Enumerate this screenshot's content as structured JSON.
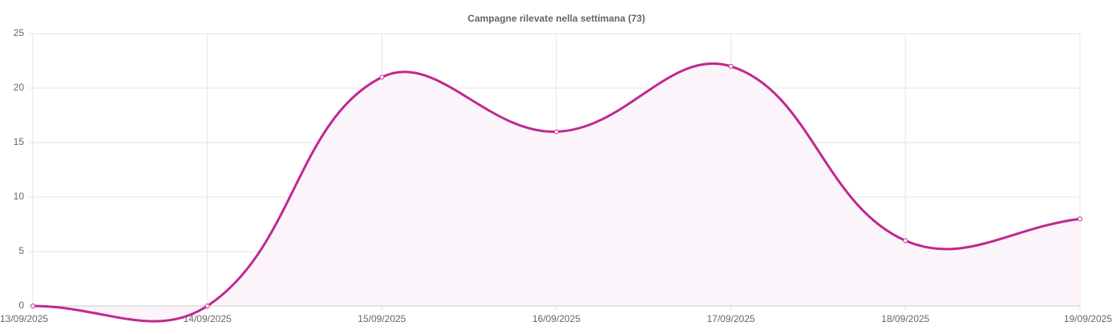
{
  "chart_data": {
    "type": "line",
    "title": "Campagne rilevate nella settimana (73)",
    "categories": [
      "13/09/2025",
      "14/09/2025",
      "15/09/2025",
      "16/09/2025",
      "17/09/2025",
      "18/09/2025",
      "19/09/2025"
    ],
    "values": [
      0,
      0,
      21,
      16,
      22,
      6,
      8
    ],
    "color": "#c0288f",
    "fill_color": "#fbf4fa",
    "ylim": [
      0,
      25
    ],
    "yticks": [
      0,
      5,
      10,
      15,
      20,
      25
    ],
    "grid": true
  }
}
